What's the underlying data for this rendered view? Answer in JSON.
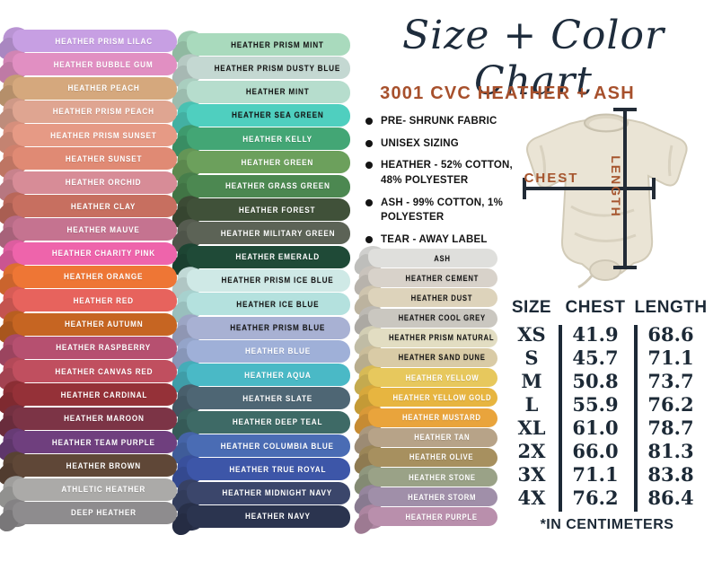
{
  "title": "Size + Color Chart",
  "subtitle": "3001 CVC HEATHER + ASH",
  "features": [
    "PRE- SHRUNK FABRIC",
    "UNISEX SIZING",
    "HEATHER - 52% COTTON, 48% POLYESTER",
    "ASH -  99% COTTON, 1% POLYESTER",
    "TEAR -  AWAY LABEL"
  ],
  "diagram": {
    "chest_label": "CHEST",
    "length_label": "LENGTH"
  },
  "size_table": {
    "headers": [
      "SIZE",
      "CHEST",
      "LENGTH"
    ],
    "rows": [
      [
        "XS",
        "41.9",
        "68.6"
      ],
      [
        "S",
        "45.7",
        "71.1"
      ],
      [
        "M",
        "50.8",
        "73.7"
      ],
      [
        "L",
        "55.9",
        "76.2"
      ],
      [
        "XL",
        "61.0",
        "78.7"
      ],
      [
        "2X",
        "66.0",
        "81.3"
      ],
      [
        "3X",
        "71.1",
        "83.8"
      ],
      [
        "4X",
        "76.2",
        "86.4"
      ]
    ],
    "footnote": "*IN CENTIMETERS"
  },
  "chart_data": {
    "type": "table",
    "title": "3001 CVC Heather + Ash size chart (centimeters)",
    "columns": [
      "SIZE",
      "CHEST",
      "LENGTH"
    ],
    "rows": [
      [
        "XS",
        41.9,
        68.6
      ],
      [
        "S",
        45.7,
        71.1
      ],
      [
        "M",
        50.8,
        73.7
      ],
      [
        "L",
        55.9,
        76.2
      ],
      [
        "XL",
        61.0,
        78.7
      ],
      [
        "2X",
        66.0,
        81.3
      ],
      [
        "3X",
        71.1,
        83.8
      ],
      [
        "4X",
        76.2,
        86.4
      ]
    ]
  },
  "colors": {
    "accent_rust": "#a7502c",
    "navy_ink": "#1c2936",
    "measure_line": "#222b36",
    "shirt_body": "#eae4d5",
    "shirt_shade": "#d9d2c0"
  },
  "swatch_columns": [
    {
      "name": "column-1",
      "swatches": [
        {
          "label": "HEATHER PRISM LILAC",
          "color": "#c79fe3",
          "text": "#ffffff"
        },
        {
          "label": "HEATHER BUBBLE GUM",
          "color": "#e18fc2",
          "text": "#ffffff"
        },
        {
          "label": "HEATHER PEACH",
          "color": "#d5a87d",
          "text": "#ffffff"
        },
        {
          "label": "HEATHER PRISM PEACH",
          "color": "#dfa591",
          "text": "#ffffff"
        },
        {
          "label": "HEATHER PRISM SUNSET",
          "color": "#e69a85",
          "text": "#ffffff"
        },
        {
          "label": "HEATHER SUNSET",
          "color": "#e08a74",
          "text": "#ffffff"
        },
        {
          "label": "HEATHER ORCHID",
          "color": "#d78c97",
          "text": "#ffffff"
        },
        {
          "label": "HEATHER CLAY",
          "color": "#c76f60",
          "text": "#ffffff"
        },
        {
          "label": "HEATHER MAUVE",
          "color": "#c57390",
          "text": "#ffffff"
        },
        {
          "label": "HEATHER CHARITY PINK",
          "color": "#ee64ab",
          "text": "#ffffff"
        },
        {
          "label": "HEATHER ORANGE",
          "color": "#ee7635",
          "text": "#ffffff"
        },
        {
          "label": "HEATHER RED",
          "color": "#e7635d",
          "text": "#ffffff"
        },
        {
          "label": "HEATHER AUTUMN",
          "color": "#c66522",
          "text": "#ffffff"
        },
        {
          "label": "HEATHER RASPBERRY",
          "color": "#b65070",
          "text": "#ffffff"
        },
        {
          "label": "HEATHER CANVAS RED",
          "color": "#c04f5f",
          "text": "#ffffff"
        },
        {
          "label": "HEATHER CARDINAL",
          "color": "#953138",
          "text": "#ffffff"
        },
        {
          "label": "HEATHER MAROON",
          "color": "#7c3446",
          "text": "#ffffff"
        },
        {
          "label": "HEATHER TEAM PURPLE",
          "color": "#6f3f7e",
          "text": "#ffffff"
        },
        {
          "label": "HEATHER BROWN",
          "color": "#5f4737",
          "text": "#ffffff"
        },
        {
          "label": "ATHLETIC HEATHER",
          "color": "#abaaa8",
          "text": "#ffffff"
        },
        {
          "label": "DEEP HEATHER",
          "color": "#8e8c8e",
          "text": "#ffffff"
        }
      ]
    },
    {
      "name": "column-2",
      "swatches": [
        {
          "label": "HEATHER PRISM MINT",
          "color": "#a9dabd",
          "text": "#141414"
        },
        {
          "label": "HEATHER PRISM DUSTY BLUE",
          "color": "#c4d8d2",
          "text": "#141414"
        },
        {
          "label": "HEATHER MINT",
          "color": "#b6ddcd",
          "text": "#141414"
        },
        {
          "label": "HEATHER SEA GREEN",
          "color": "#4fcfbf",
          "text": "#141414"
        },
        {
          "label": "HEATHER KELLY",
          "color": "#43a675",
          "text": "#ffffff"
        },
        {
          "label": "HEATHER GREEN",
          "color": "#6ca05c",
          "text": "#ffffff"
        },
        {
          "label": "HEATHER GRASS GREEN",
          "color": "#4c8851",
          "text": "#ffffff"
        },
        {
          "label": "HEATHER FOREST",
          "color": "#405139",
          "text": "#ffffff"
        },
        {
          "label": "HEATHER MILITARY GREEN",
          "color": "#5c6356",
          "text": "#ffffff"
        },
        {
          "label": "HEATHER EMERALD",
          "color": "#1f4a37",
          "text": "#ffffff"
        },
        {
          "label": "HEATHER PRISM ICE BLUE",
          "color": "#cfe9e6",
          "text": "#141414"
        },
        {
          "label": "HEATHER ICE BLUE",
          "color": "#b4e1de",
          "text": "#141414"
        },
        {
          "label": "HEATHER PRISM BLUE",
          "color": "#a8b1d3",
          "text": "#141414"
        },
        {
          "label": "HEATHER BLUE",
          "color": "#9fb0d8",
          "text": "#ffffff"
        },
        {
          "label": "HEATHER AQUA",
          "color": "#4ab9c6",
          "text": "#ffffff"
        },
        {
          "label": "HEATHER SLATE",
          "color": "#4e6674",
          "text": "#ffffff"
        },
        {
          "label": "HEATHER DEEP TEAL",
          "color": "#3e6a66",
          "text": "#ffffff"
        },
        {
          "label": "HEATHER COLUMBIA BLUE",
          "color": "#4a6cb4",
          "text": "#ffffff"
        },
        {
          "label": "HEATHER TRUE ROYAL",
          "color": "#3d56a8",
          "text": "#ffffff"
        },
        {
          "label": "HEATHER MIDNIGHT NAVY",
          "color": "#3b466b",
          "text": "#ffffff"
        },
        {
          "label": "HEATHER NAVY",
          "color": "#2b344f",
          "text": "#ffffff"
        }
      ]
    },
    {
      "name": "column-3",
      "swatches": [
        {
          "label": "ASH",
          "color": "#dfdfdc",
          "text": "#141414"
        },
        {
          "label": "HEATHER CEMENT",
          "color": "#d8d2ca",
          "text": "#141414"
        },
        {
          "label": "HEATHER DUST",
          "color": "#ddd3bb",
          "text": "#141414"
        },
        {
          "label": "HEATHER COOL GREY",
          "color": "#cac7c0",
          "text": "#141414"
        },
        {
          "label": "HEATHER PRISM NATURAL",
          "color": "#e2ddc2",
          "text": "#141414"
        },
        {
          "label": "HEATHER SAND DUNE",
          "color": "#d9cba6",
          "text": "#141414"
        },
        {
          "label": "HEATHER YELLOW",
          "color": "#e7c85d",
          "text": "#ffffff"
        },
        {
          "label": "HEATHER YELLOW GOLD",
          "color": "#e7b540",
          "text": "#ffffff"
        },
        {
          "label": "HEATHER MUSTARD",
          "color": "#e9a43c",
          "text": "#ffffff"
        },
        {
          "label": "HEATHER TAN",
          "color": "#b7a388",
          "text": "#ffffff"
        },
        {
          "label": "HEATHER OLIVE",
          "color": "#a7905f",
          "text": "#ffffff"
        },
        {
          "label": "HEATHER STONE",
          "color": "#9aa287",
          "text": "#ffffff"
        },
        {
          "label": "HEATHER STORM",
          "color": "#a08fa9",
          "text": "#ffffff"
        },
        {
          "label": "HEATHER PURPLE",
          "color": "#b98fac",
          "text": "#ffffff"
        }
      ]
    }
  ]
}
